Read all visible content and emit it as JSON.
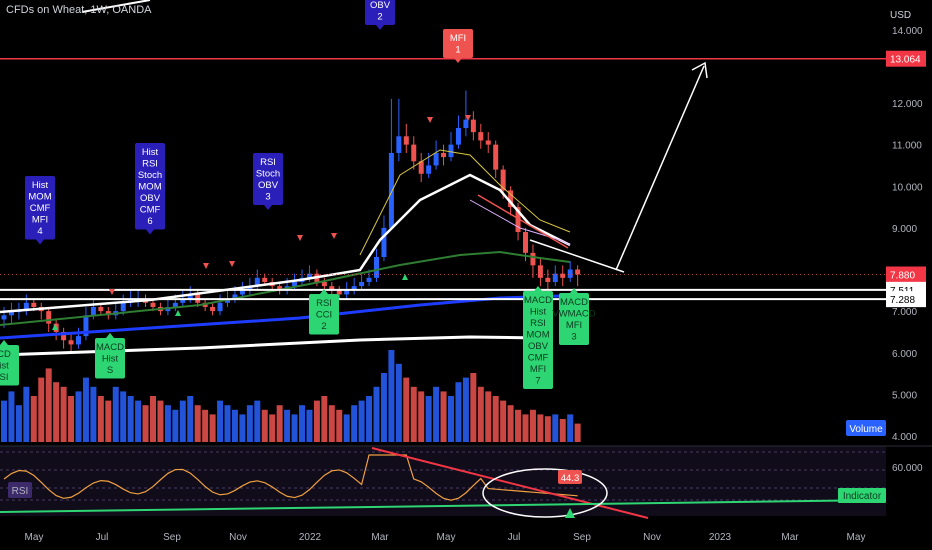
{
  "header": {
    "title": "CFDs on Wheat, 1W, OANDA",
    "currency": "USD"
  },
  "colors": {
    "up": "#2962ff",
    "down": "#ef5350",
    "signal_label_bg": "#2a1fb8",
    "signal_label_green": "#2ed573",
    "target_line": "#f23645",
    "ema_blue": "#1e3cff",
    "ema_green": "#2e7d32",
    "rsi_line": "#f23645",
    "rsi_band": "#1e1530"
  },
  "chart_data": {
    "type": "candlestick",
    "x_axis": {
      "tick_labels": [
        "May",
        "Jul",
        "Sep",
        "Nov",
        "2022",
        "Mar",
        "May",
        "Jul",
        "Sep",
        "Nov",
        "2023",
        "Mar",
        "May"
      ]
    },
    "y_axis": {
      "scale": "linear",
      "tick_labels": [
        "14.000",
        "12.000",
        "11.000",
        "10.000",
        "9.000",
        "8.000",
        "7.000",
        "6.000",
        "5.000",
        "4.000"
      ],
      "ticks": [
        14,
        12,
        11,
        10,
        9,
        8,
        7,
        6,
        5,
        4
      ],
      "range": [
        3.2,
        14.5
      ]
    },
    "price_labels": [
      {
        "text": "13.064",
        "value": 13.064,
        "color": "#f23645"
      },
      {
        "text": "7.880",
        "value": 7.88,
        "color": "#f23645"
      },
      {
        "text": "7.511",
        "value": 7.511,
        "color": "#000000"
      },
      {
        "text": "7.288",
        "value": 7.288,
        "color": "#000000"
      }
    ],
    "candles": {
      "open": [
        6.8,
        6.9,
        7.0,
        7.0,
        7.2,
        7.1,
        7.0,
        6.7,
        6.5,
        6.3,
        6.2,
        6.4,
        6.9,
        7.1,
        7.0,
        6.9,
        7.0,
        7.2,
        7.3,
        7.3,
        7.2,
        7.1,
        7.0,
        7.1,
        7.2,
        7.3,
        7.4,
        7.2,
        7.1,
        7.0,
        7.2,
        7.3,
        7.4,
        7.5,
        7.6,
        7.8,
        7.7,
        7.6,
        7.5,
        7.6,
        7.7,
        7.8,
        7.9,
        7.7,
        7.6,
        7.5,
        7.4,
        7.5,
        7.6,
        7.7,
        7.8,
        8.3,
        9.0,
        10.8,
        11.2,
        11.0,
        10.6,
        10.3,
        10.5,
        10.8,
        10.7,
        11.0,
        11.4,
        11.6,
        11.3,
        11.1,
        11.0,
        10.4,
        9.9,
        9.5,
        8.9,
        8.4,
        8.1,
        7.8,
        7.7,
        7.9,
        7.8,
        8.0
      ],
      "close": [
        6.9,
        7.0,
        7.0,
        7.2,
        7.1,
        7.0,
        6.7,
        6.5,
        6.3,
        6.2,
        6.4,
        6.9,
        7.1,
        7.0,
        6.9,
        7.0,
        7.2,
        7.3,
        7.3,
        7.2,
        7.1,
        7.0,
        7.1,
        7.2,
        7.3,
        7.4,
        7.2,
        7.1,
        7.0,
        7.2,
        7.3,
        7.4,
        7.5,
        7.6,
        7.8,
        7.7,
        7.6,
        7.5,
        7.6,
        7.7,
        7.8,
        7.9,
        7.7,
        7.6,
        7.5,
        7.4,
        7.5,
        7.6,
        7.7,
        7.8,
        8.3,
        9.0,
        10.8,
        11.2,
        11.0,
        10.6,
        10.3,
        10.5,
        10.8,
        10.7,
        11.0,
        11.4,
        11.6,
        11.3,
        11.1,
        11.0,
        10.4,
        9.9,
        9.5,
        8.9,
        8.4,
        8.1,
        7.8,
        7.7,
        7.9,
        7.8,
        8.0,
        7.88
      ],
      "high": [
        7.1,
        7.2,
        7.2,
        7.4,
        7.3,
        7.2,
        7.1,
        6.8,
        6.6,
        6.5,
        6.6,
        7.1,
        7.3,
        7.2,
        7.1,
        7.2,
        7.4,
        7.5,
        7.5,
        7.4,
        7.3,
        7.2,
        7.3,
        7.4,
        7.5,
        7.6,
        7.5,
        7.3,
        7.2,
        7.4,
        7.5,
        7.6,
        7.7,
        7.8,
        8.0,
        7.9,
        7.8,
        7.7,
        7.8,
        7.9,
        8.0,
        8.1,
        8.0,
        7.8,
        7.7,
        7.6,
        7.7,
        7.8,
        7.9,
        8.0,
        8.5,
        9.3,
        12.1,
        12.1,
        11.5,
        11.2,
        10.8,
        10.8,
        11.1,
        11.0,
        11.3,
        11.7,
        12.3,
        11.8,
        11.5,
        11.3,
        11.1,
        10.5,
        10.0,
        9.6,
        9.0,
        8.6,
        8.3,
        8.0,
        8.1,
        8.1,
        8.2,
        8.1
      ],
      "low": [
        6.6,
        6.7,
        6.8,
        6.9,
        7.0,
        6.8,
        6.5,
        6.3,
        6.1,
        6.0,
        6.1,
        6.3,
        6.8,
        6.9,
        6.8,
        6.8,
        6.9,
        7.1,
        7.1,
        7.1,
        7.0,
        6.9,
        6.9,
        7.0,
        7.1,
        7.2,
        7.1,
        7.0,
        6.9,
        6.9,
        7.1,
        7.2,
        7.3,
        7.4,
        7.5,
        7.6,
        7.5,
        7.4,
        7.4,
        7.5,
        7.6,
        7.7,
        7.6,
        7.5,
        7.4,
        7.3,
        7.3,
        7.4,
        7.5,
        7.6,
        7.7,
        8.2,
        9.0,
        10.6,
        10.8,
        10.4,
        10.1,
        10.2,
        10.4,
        10.5,
        10.6,
        10.9,
        11.2,
        11.1,
        10.9,
        10.8,
        10.2,
        9.7,
        9.3,
        8.7,
        8.2,
        7.8,
        7.6,
        7.5,
        7.6,
        7.6,
        7.7,
        7.6
      ]
    },
    "volume_relative": [
      0.45,
      0.55,
      0.4,
      0.6,
      0.5,
      0.7,
      0.8,
      0.65,
      0.6,
      0.5,
      0.55,
      0.7,
      0.6,
      0.5,
      0.45,
      0.6,
      0.55,
      0.5,
      0.45,
      0.4,
      0.5,
      0.45,
      0.4,
      0.35,
      0.45,
      0.5,
      0.4,
      0.35,
      0.3,
      0.45,
      0.4,
      0.35,
      0.3,
      0.4,
      0.45,
      0.35,
      0.3,
      0.4,
      0.35,
      0.3,
      0.4,
      0.35,
      0.45,
      0.5,
      0.4,
      0.35,
      0.3,
      0.4,
      0.45,
      0.5,
      0.6,
      0.75,
      1.0,
      0.85,
      0.7,
      0.6,
      0.55,
      0.5,
      0.6,
      0.55,
      0.5,
      0.65,
      0.7,
      0.75,
      0.6,
      0.55,
      0.5,
      0.45,
      0.4,
      0.35,
      0.3,
      0.35,
      0.3,
      0.28,
      0.3,
      0.25,
      0.3,
      0.2
    ],
    "target_value": 13.064,
    "signal_labels_top": [
      {
        "lines": [
          "Hist",
          "MOM",
          "CMF",
          "MFI",
          "4"
        ]
      },
      {
        "lines": [
          "Hist",
          "RSI",
          "Stoch",
          "MOM",
          "OBV",
          "CMF",
          "6"
        ]
      },
      {
        "lines": [
          "RSI",
          "Stoch",
          "OBV",
          "3"
        ]
      },
      {
        "lines": [
          "OBV",
          "2"
        ]
      },
      {
        "lines": [
          "MFI",
          "1"
        ]
      }
    ],
    "signal_labels_bottom": [
      {
        "lines": [
          "CD",
          "ist",
          "SI"
        ]
      },
      {
        "lines": [
          "MACD",
          "Hist",
          "S"
        ]
      },
      {
        "lines": [
          "RSI",
          "CCI",
          "2"
        ]
      },
      {
        "lines": [
          "MACD",
          "Hist",
          "RSI",
          "MOM",
          "OBV",
          "CMF",
          "MFI",
          "7"
        ]
      },
      {
        "lines": [
          "MACD",
          "VWMACD",
          "MFI",
          "3"
        ]
      }
    ],
    "volume_badge": "Volume",
    "rsi_panel": {
      "label": "RSI",
      "tick_label": "60.000",
      "value_badge": "44.3",
      "indicator_badge": "Indicator"
    }
  }
}
